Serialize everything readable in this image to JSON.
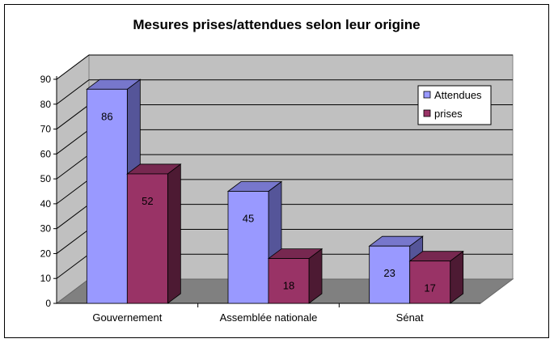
{
  "chart_data": {
    "type": "bar",
    "title": "Mesures prises/attendues selon leur origine",
    "categories": [
      "Gouvernement",
      "Assemblée nationale",
      "Sénat"
    ],
    "series": [
      {
        "name": "Attendues",
        "values": [
          86,
          45,
          23
        ],
        "color": "#9999ff",
        "side": "#555599",
        "top": "#7777cc"
      },
      {
        "name": "prises",
        "values": [
          52,
          18,
          17
        ],
        "color": "#993366",
        "side": "#4d1a33",
        "top": "#772850"
      }
    ],
    "yticks": [
      "0",
      "10",
      "20",
      "30",
      "40",
      "50",
      "60",
      "70",
      "80",
      "90"
    ],
    "ylim": [
      0,
      90
    ],
    "grid": true,
    "legend": "right",
    "three_d": true,
    "wall_color": "#c0c0c0",
    "floor_color": "#808080"
  }
}
